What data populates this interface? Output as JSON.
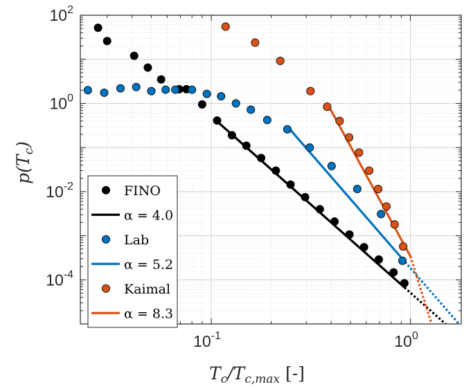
{
  "chart_data": {
    "type": "scatter",
    "xscale": "log",
    "yscale": "log",
    "xlim": [
      0.022,
      1.8
    ],
    "ylim": [
      1e-05,
      100
    ],
    "grid": true,
    "xlabel": "T_c/T_{c,max} [-]",
    "ylabel": "p(T_c)",
    "xticks": [
      {
        "value": 0.1,
        "base": "10",
        "exp": "-1"
      },
      {
        "value": 1,
        "base": "10",
        "exp": "0"
      }
    ],
    "yticks": [
      {
        "value": 100,
        "base": "10",
        "exp": "2"
      },
      {
        "value": 1,
        "base": "10",
        "exp": "0"
      },
      {
        "value": 0.01,
        "base": "10",
        "exp": "-2"
      },
      {
        "value": 0.0001,
        "base": "10",
        "exp": "-4"
      }
    ],
    "legend_position": "bottom-left",
    "series": [
      {
        "name": "FINO",
        "kind": "scatter",
        "color": "#000000",
        "x": [
          0.027,
          0.03,
          0.041,
          0.048,
          0.056,
          0.069,
          0.075,
          0.09,
          0.107,
          0.127,
          0.15,
          0.178,
          0.211,
          0.25,
          0.296,
          0.351,
          0.416,
          0.494,
          0.585,
          0.694,
          0.823,
          0.933
        ],
        "y": [
          52,
          26,
          12,
          6.5,
          3.5,
          2.1,
          2.1,
          0.95,
          0.41,
          0.19,
          0.11,
          0.058,
          0.03,
          0.0145,
          0.0075,
          0.004,
          0.0021,
          0.00107,
          0.00055,
          0.00029,
          0.000148,
          8.4e-05
        ]
      },
      {
        "name": "α = 4.0",
        "kind": "fit",
        "color": "#000000",
        "x": [
          0.107,
          0.935
        ],
        "y": [
          0.39,
          6.68e-05
        ],
        "extension": {
          "x": [
            0.935,
            1.55
          ],
          "y": [
            6.68e-05,
            8.8e-06
          ]
        }
      },
      {
        "name": "Lab",
        "kind": "scatter",
        "color": "#0072BD",
        "x": [
          0.024,
          0.029,
          0.035,
          0.042,
          0.05,
          0.059,
          0.066,
          0.08,
          0.095,
          0.112,
          0.133,
          0.158,
          0.191,
          0.241,
          0.312,
          0.402,
          0.541,
          0.712,
          0.912
        ],
        "y": [
          2.0,
          1.75,
          2.2,
          2.35,
          1.9,
          2.05,
          2.05,
          2.05,
          1.65,
          1.45,
          1.0,
          0.72,
          0.42,
          0.26,
          0.1,
          0.038,
          0.0115,
          0.0031,
          0.00027
        ]
      },
      {
        "name": "α = 5.2",
        "kind": "fit",
        "color": "#0072BD",
        "x": [
          0.25,
          0.94
        ],
        "y": [
          0.25,
          0.000254
        ],
        "extension": {
          "x": [
            0.94,
            1.75
          ],
          "y": [
            0.000254,
            1.01e-05
          ]
        }
      },
      {
        "name": "Kaimal",
        "kind": "scatter",
        "color": "#D95319",
        "x": [
          0.118,
          0.166,
          0.222,
          0.315,
          0.382,
          0.441,
          0.492,
          0.552,
          0.621,
          0.689,
          0.758,
          0.833,
          0.92
        ],
        "y": [
          55,
          24,
          9.2,
          1.9,
          0.84,
          0.4,
          0.17,
          0.077,
          0.03,
          0.0115,
          0.0046,
          0.0018,
          0.00057
        ]
      },
      {
        "name": "α = 8.3",
        "kind": "fit",
        "color": "#D95319",
        "x": [
          0.38,
          1.0
        ],
        "y": [
          1.05,
          0.000342
        ],
        "extension": {
          "x": [
            1.0,
            1.28
          ],
          "y": [
            0.000342,
            9.7e-06
          ]
        }
      }
    ]
  }
}
